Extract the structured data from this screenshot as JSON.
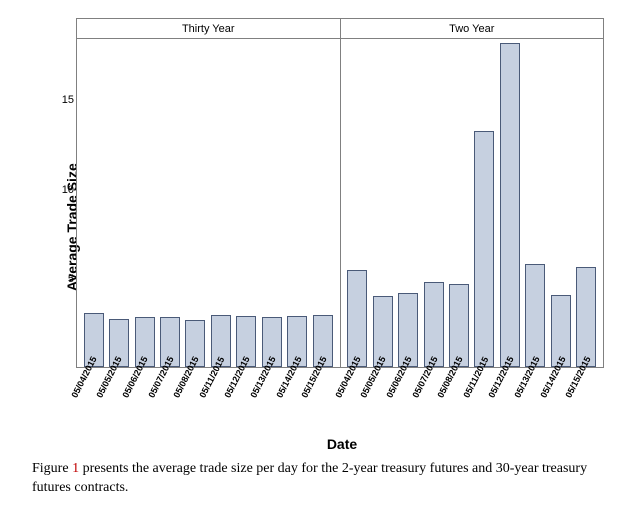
{
  "chart": {
    "type": "bar",
    "ylabel": "Average Trade Size",
    "xlabel": "Date",
    "ylim": [
      0,
      18.5
    ],
    "yticks": [
      5,
      10,
      15
    ],
    "bar_fill": "#c6d0e0",
    "bar_stroke": "#4a5a78",
    "border_color": "#808080",
    "background_color": "#ffffff",
    "label_fontsize": 14,
    "tick_fontsize": 11,
    "xtick_fontsize": 9,
    "panels": [
      {
        "title": "Thirty Year",
        "dates": [
          "05/04/2015",
          "05/05/2015",
          "05/06/2015",
          "05/07/2015",
          "05/08/2015",
          "05/11/2015",
          "05/12/2015",
          "05/13/2015",
          "05/14/2015",
          "05/15/2015"
        ],
        "values": [
          3.05,
          2.7,
          2.8,
          2.8,
          2.65,
          2.95,
          2.85,
          2.8,
          2.9,
          2.95
        ]
      },
      {
        "title": "Two Year",
        "dates": [
          "05/04/2015",
          "05/05/2015",
          "05/06/2015",
          "05/07/2015",
          "05/08/2015",
          "05/11/2015",
          "05/12/2015",
          "05/13/2015",
          "05/14/2015",
          "05/15/2015"
        ],
        "values": [
          5.45,
          4.0,
          4.15,
          4.8,
          4.7,
          13.3,
          18.3,
          5.8,
          4.05,
          5.65
        ]
      }
    ]
  },
  "caption": {
    "prefix": "Figure ",
    "number": "1",
    "rest": " presents the average trade size per day for the 2-year treasury futures and 30-year treasury futures contracts."
  }
}
